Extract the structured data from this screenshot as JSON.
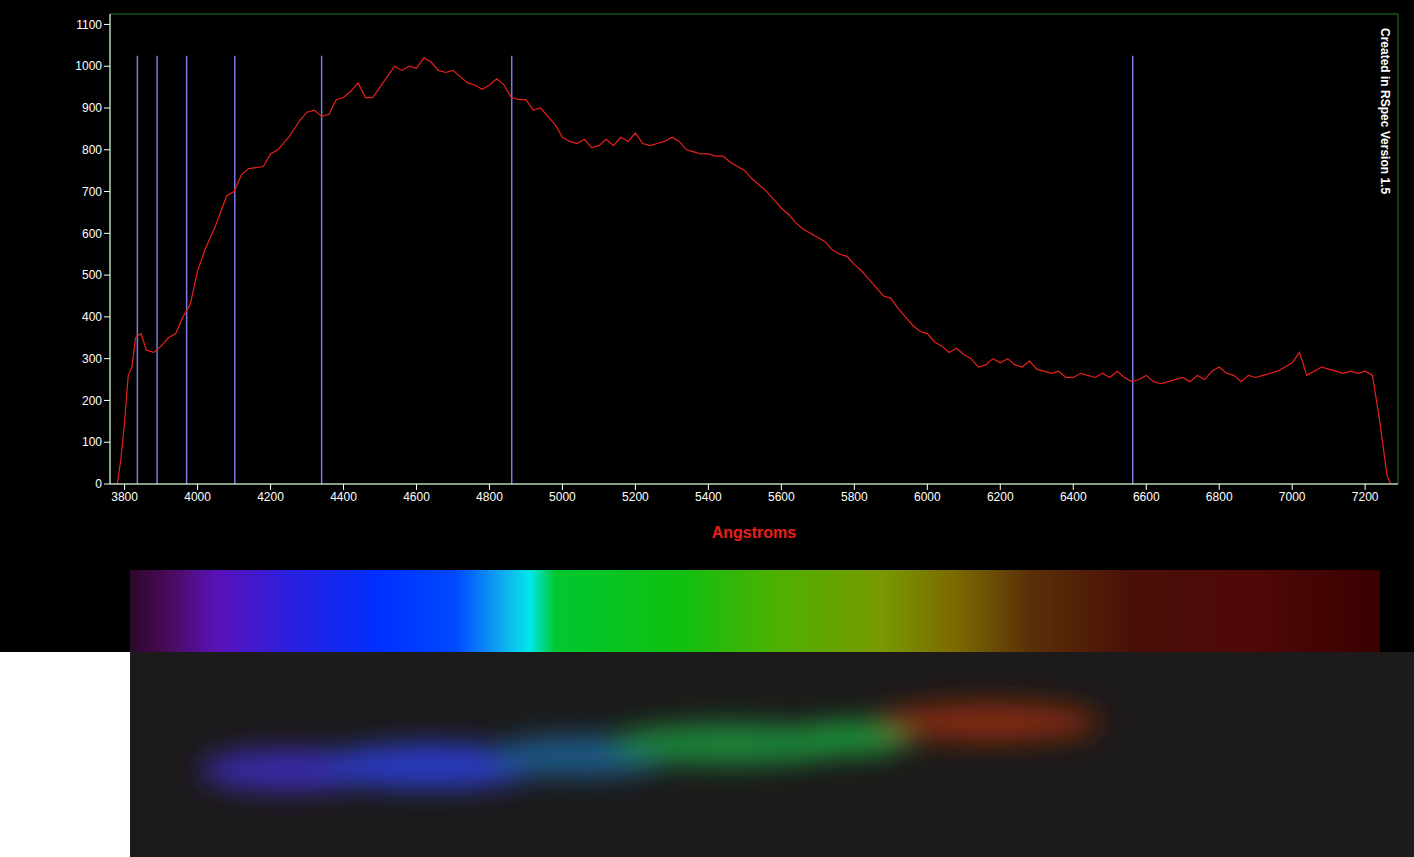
{
  "chart_data": {
    "type": "line",
    "x_label": "Angstroms",
    "annotation": "Created in RSpec Version 1.5",
    "color": "#e8201c",
    "grid": false,
    "xlim": [
      3760,
      7290
    ],
    "ylim": [
      0,
      1125
    ],
    "xticks": [
      3800,
      4000,
      4200,
      4400,
      4600,
      4800,
      5000,
      5200,
      5400,
      5600,
      5800,
      6000,
      6200,
      6400,
      6600,
      6800,
      7000,
      7200
    ],
    "yticks": [
      0,
      100,
      200,
      300,
      400,
      500,
      600,
      700,
      800,
      900,
      1000,
      1100
    ],
    "reference_lines": {
      "x": [
        3835,
        3889,
        3970,
        4102,
        4340,
        4861,
        6563
      ],
      "top": 1025,
      "color": "#7b7be0"
    },
    "x": [
      3770,
      3780,
      3790,
      3800,
      3810,
      3820,
      3830,
      3845,
      3860,
      3880,
      3900,
      3920,
      3940,
      3960,
      3980,
      4000,
      4020,
      4050,
      4080,
      4100,
      4120,
      4140,
      4180,
      4200,
      4220,
      4250,
      4280,
      4300,
      4320,
      4340,
      4360,
      4380,
      4400,
      4420,
      4440,
      4460,
      4480,
      4500,
      4520,
      4540,
      4560,
      4580,
      4600,
      4620,
      4640,
      4660,
      4680,
      4700,
      4720,
      4740,
      4760,
      4780,
      4800,
      4820,
      4840,
      4860,
      4880,
      4900,
      4920,
      4940,
      4960,
      4980,
      5000,
      5020,
      5040,
      5060,
      5080,
      5100,
      5120,
      5140,
      5160,
      5180,
      5200,
      5220,
      5240,
      5260,
      5280,
      5300,
      5320,
      5340,
      5360,
      5380,
      5400,
      5420,
      5440,
      5460,
      5480,
      5500,
      5520,
      5540,
      5560,
      5580,
      5600,
      5620,
      5640,
      5660,
      5680,
      5700,
      5720,
      5740,
      5760,
      5780,
      5800,
      5820,
      5840,
      5860,
      5880,
      5900,
      5920,
      5940,
      5960,
      5980,
      6000,
      6020,
      6040,
      6060,
      6080,
      6100,
      6120,
      6140,
      6160,
      6180,
      6200,
      6220,
      6240,
      6260,
      6280,
      6300,
      6320,
      6340,
      6360,
      6380,
      6400,
      6420,
      6440,
      6460,
      6480,
      6500,
      6520,
      6540,
      6560,
      6580,
      6600,
      6620,
      6640,
      6660,
      6680,
      6700,
      6720,
      6740,
      6760,
      6780,
      6800,
      6820,
      6840,
      6860,
      6880,
      6900,
      6920,
      6940,
      6960,
      6980,
      7000,
      7020,
      7040,
      7060,
      7080,
      7100,
      7120,
      7140,
      7160,
      7180,
      7200,
      7220,
      7240,
      7260,
      7270
    ],
    "values": [
      0,
      0,
      60,
      150,
      260,
      280,
      350,
      360,
      320,
      315,
      330,
      350,
      360,
      400,
      430,
      510,
      560,
      620,
      690,
      700,
      740,
      755,
      760,
      790,
      800,
      830,
      870,
      890,
      895,
      880,
      885,
      920,
      925,
      940,
      960,
      925,
      925,
      950,
      975,
      1000,
      990,
      1000,
      995,
      1020,
      1010,
      990,
      985,
      990,
      975,
      960,
      955,
      945,
      955,
      970,
      955,
      925,
      920,
      920,
      895,
      900,
      880,
      860,
      830,
      820,
      815,
      825,
      805,
      810,
      825,
      810,
      830,
      820,
      840,
      815,
      810,
      815,
      820,
      830,
      820,
      800,
      795,
      790,
      790,
      785,
      785,
      770,
      760,
      750,
      730,
      715,
      700,
      680,
      660,
      645,
      625,
      610,
      600,
      590,
      580,
      560,
      550,
      545,
      525,
      510,
      490,
      470,
      450,
      445,
      420,
      400,
      380,
      365,
      360,
      340,
      330,
      315,
      325,
      310,
      300,
      280,
      285,
      300,
      290,
      300,
      285,
      280,
      295,
      275,
      270,
      265,
      270,
      255,
      255,
      265,
      260,
      255,
      265,
      255,
      270,
      255,
      245,
      250,
      260,
      245,
      240,
      245,
      250,
      255,
      245,
      260,
      250,
      270,
      280,
      265,
      260,
      245,
      260,
      255,
      260,
      265,
      270,
      280,
      290,
      315,
      260,
      270,
      280,
      275,
      270,
      265,
      270,
      265,
      270,
      260,
      150,
      20,
      0
    ]
  }
}
